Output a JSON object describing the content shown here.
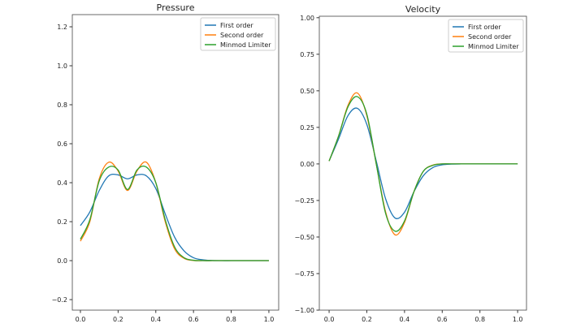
{
  "chart_data": [
    {
      "type": "line",
      "title": "Pressure",
      "xlim": [
        -0.043,
        1.052
      ],
      "ylim": [
        -0.254,
        1.2625
      ],
      "xticks": [
        "0.0",
        "0.2",
        "0.4",
        "0.6",
        "0.8",
        "1.0"
      ],
      "yticks": [
        "−0.2",
        "0.0",
        "0.2",
        "0.4",
        "0.6",
        "0.8",
        "1.0",
        "1.2"
      ],
      "legend": "top-right",
      "grid": false,
      "x": [
        0.0,
        0.05,
        0.1,
        0.15,
        0.2,
        0.25,
        0.3,
        0.35,
        0.4,
        0.45,
        0.5,
        0.55,
        0.6,
        0.65,
        0.7,
        0.75,
        0.8,
        0.85,
        0.9,
        0.95,
        1.0
      ],
      "series": [
        {
          "name": "First order",
          "color": "#1f77b4",
          "values": [
            0.18,
            0.25,
            0.36,
            0.435,
            0.44,
            0.42,
            0.44,
            0.435,
            0.37,
            0.24,
            0.12,
            0.05,
            0.015,
            0.004,
            0.001,
            0,
            0,
            0,
            0,
            0,
            0
          ]
        },
        {
          "name": "Second order",
          "color": "#ff7f0e",
          "values": [
            0.1,
            0.2,
            0.42,
            0.505,
            0.46,
            0.36,
            0.46,
            0.505,
            0.4,
            0.2,
            0.06,
            0.012,
            0.001,
            0,
            0,
            0,
            0,
            0,
            0,
            0,
            0
          ]
        },
        {
          "name": "Minmod Limiter",
          "color": "#2ca02c",
          "values": [
            0.11,
            0.21,
            0.41,
            0.48,
            0.465,
            0.365,
            0.465,
            0.48,
            0.4,
            0.21,
            0.07,
            0.015,
            0.002,
            0,
            0,
            0,
            0,
            0,
            0,
            0,
            0
          ]
        }
      ]
    },
    {
      "type": "line",
      "title": "Velocity",
      "xlim": [
        -0.052,
        1.047
      ],
      "ylim": [
        -1.0,
        1.01
      ],
      "xticks": [
        "0.0",
        "0.2",
        "0.4",
        "0.6",
        "0.8",
        "1.0"
      ],
      "yticks": [
        "−1.00",
        "−0.75",
        "−0.50",
        "−0.25",
        "0.00",
        "0.25",
        "0.50",
        "0.75",
        "1.00"
      ],
      "legend": "top-right",
      "grid": false,
      "x": [
        0.0,
        0.05,
        0.1,
        0.15,
        0.2,
        0.25,
        0.3,
        0.35,
        0.4,
        0.45,
        0.5,
        0.55,
        0.6,
        0.65,
        0.7,
        0.75,
        0.8,
        0.85,
        0.9,
        0.95,
        1.0
      ],
      "series": [
        {
          "name": "First order",
          "color": "#1f77b4",
          "values": [
            0.02,
            0.17,
            0.33,
            0.38,
            0.27,
            0.02,
            -0.24,
            -0.37,
            -0.33,
            -0.19,
            -0.08,
            -0.025,
            -0.006,
            -0.001,
            0,
            0,
            0,
            0,
            0,
            0,
            0
          ]
        },
        {
          "name": "Second order",
          "color": "#ff7f0e",
          "values": [
            0.02,
            0.19,
            0.4,
            0.485,
            0.33,
            0.0,
            -0.33,
            -0.485,
            -0.4,
            -0.19,
            -0.05,
            -0.008,
            0,
            0,
            0,
            0,
            0,
            0,
            0,
            0,
            0
          ]
        },
        {
          "name": "Minmod Limiter",
          "color": "#2ca02c",
          "values": [
            0.02,
            0.19,
            0.39,
            0.46,
            0.34,
            0.0,
            -0.34,
            -0.46,
            -0.39,
            -0.19,
            -0.05,
            -0.01,
            0,
            0,
            0,
            0,
            0,
            0,
            0,
            0,
            0
          ]
        }
      ]
    }
  ]
}
